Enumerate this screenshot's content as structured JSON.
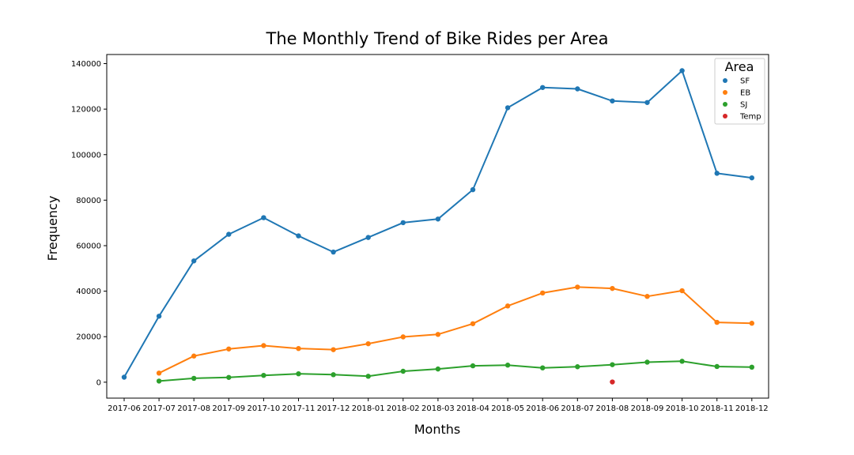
{
  "chart_data": {
    "type": "line",
    "title": "The Monthly Trend of Bike Rides per Area",
    "xlabel": "Months",
    "ylabel": "Frequency",
    "categories": [
      "2017-06",
      "2017-07",
      "2017-08",
      "2017-09",
      "2017-10",
      "2017-11",
      "2017-12",
      "2018-01",
      "2018-02",
      "2018-03",
      "2018-04",
      "2018-05",
      "2018-06",
      "2018-07",
      "2018-08",
      "2018-09",
      "2018-10",
      "2018-11",
      "2018-12"
    ],
    "ylim": [
      -7000,
      144000
    ],
    "yticks": [
      0,
      20000,
      40000,
      60000,
      80000,
      100000,
      120000,
      140000
    ],
    "grid": false,
    "legend": {
      "title": "Area",
      "placement": "top-right"
    },
    "series": [
      {
        "name": "SF",
        "color": "#1f77b4",
        "values": [
          2200,
          29000,
          53300,
          65000,
          72300,
          64300,
          57200,
          63600,
          70100,
          71700,
          84600,
          120600,
          129500,
          128900,
          123600,
          122900,
          136900,
          91800,
          89800
        ]
      },
      {
        "name": "EB",
        "color": "#ff7f0e",
        "values": [
          null,
          4000,
          11500,
          14600,
          16100,
          14800,
          14300,
          16900,
          19900,
          21000,
          25700,
          33500,
          39200,
          41800,
          41200,
          37700,
          40200,
          26300,
          25900
        ]
      },
      {
        "name": "SJ",
        "color": "#2ca02c",
        "values": [
          null,
          500,
          1700,
          2100,
          3000,
          3700,
          3300,
          2600,
          4800,
          5800,
          7200,
          7500,
          6300,
          6800,
          7700,
          8800,
          9200,
          6900,
          6600
        ]
      },
      {
        "name": "Temp",
        "color": "#d62728",
        "values": [
          null,
          null,
          null,
          null,
          null,
          null,
          null,
          null,
          null,
          null,
          null,
          null,
          null,
          null,
          100,
          null,
          null,
          null,
          null
        ]
      }
    ]
  }
}
